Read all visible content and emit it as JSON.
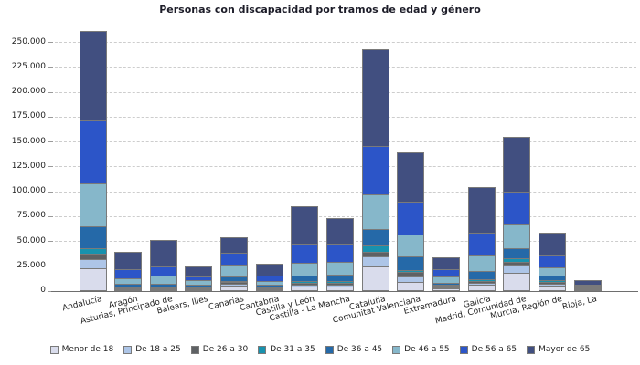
{
  "title": "Personas con discapacidad por tramos de edad y género",
  "y_axis": {
    "ticks": [
      "0",
      "25.000",
      "50.000",
      "75.000",
      "100.000",
      "125.000",
      "150.000",
      "175.000",
      "200.000",
      "225.000",
      "250.000"
    ]
  },
  "colors": {
    "grid": "#cdcdcd",
    "axis": "#6e6e6e",
    "bar_border": "#7a7a7a",
    "text": "#222222",
    "title": "#1c1c28"
  },
  "chart_data": {
    "type": "bar",
    "stacked": true,
    "title": "Personas con discapacidad por tramos de edad y género",
    "xlabel": "",
    "ylabel": "",
    "ylim": [
      0,
      262500
    ],
    "y_tick_step": 25000,
    "grid": "horizontal-dashed",
    "legend_position": "bottom",
    "categories": [
      "Andalucía",
      "Aragón",
      "Asturias, Principado de",
      "Balears, Illes",
      "Canarias",
      "Cantabria",
      "Castilla y León",
      "Castilla - La Mancha",
      "Cataluña",
      "Comunitat Valenciana",
      "Extremadura",
      "Galicia",
      "Madrid, Comunidad de",
      "Murcia, Región de",
      "Rioja, La"
    ],
    "series": [
      {
        "name": "Menor de 18",
        "color": "#d9dcec",
        "values": [
          22000,
          1300,
          1200,
          1300,
          4700,
          1000,
          3800,
          3900,
          24000,
          8900,
          2300,
          5500,
          17700,
          5200,
          1100
        ]
      },
      {
        "name": "De 18 a 25",
        "color": "#adc5e7",
        "values": [
          9500,
          1000,
          900,
          1000,
          2100,
          1000,
          1800,
          2000,
          10000,
          5500,
          1200,
          1800,
          8300,
          1500,
          500
        ]
      },
      {
        "name": "De 26 a 30",
        "color": "#5e6164",
        "values": [
          6000,
          1000,
          900,
          1000,
          1600,
          1000,
          2500,
          2200,
          5000,
          4000,
          1200,
          1900,
          3000,
          1600,
          500
        ]
      },
      {
        "name": "De 31 a 35",
        "color": "#1892ae",
        "values": [
          5500,
          900,
          800,
          800,
          1500,
          800,
          1800,
          1800,
          6800,
          2100,
          800,
          2400,
          3100,
          1800,
          400
        ]
      },
      {
        "name": "De 36 a 45",
        "color": "#2569a8",
        "values": [
          22000,
          2500,
          3000,
          2100,
          4600,
          2400,
          5500,
          6200,
          16000,
          13800,
          2400,
          8300,
          10400,
          4600,
          900
        ]
      },
      {
        "name": "De 46 a 55",
        "color": "#86b7ca",
        "values": [
          42500,
          6000,
          8600,
          4000,
          11600,
          3600,
          12300,
          13200,
          35000,
          22000,
          5900,
          15200,
          23800,
          8800,
          1300
        ]
      },
      {
        "name": "De 56 a 65",
        "color": "#2c55c8",
        "values": [
          64000,
          9200,
          9100,
          4300,
          12200,
          5500,
          19700,
          17600,
          48500,
          33000,
          8200,
          23000,
          33000,
          11600,
          1200
        ]
      },
      {
        "name": "Mayor de 65",
        "color": "#414f80",
        "values": [
          88500,
          15800,
          25500,
          8700,
          14800,
          10700,
          36800,
          25100,
          96700,
          49000,
          11000,
          45500,
          54100,
          22400,
          3300
        ]
      }
    ]
  }
}
